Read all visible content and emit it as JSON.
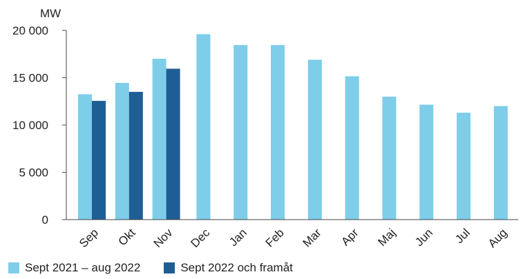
{
  "chart_data": {
    "type": "bar",
    "unit_label": "MW",
    "categories": [
      "Sep",
      "Okt",
      "Nov",
      "Dec",
      "Jan",
      "Feb",
      "Mar",
      "Apr",
      "Maj",
      "Jun",
      "Jul",
      "Aug"
    ],
    "series": [
      {
        "name": "Sept 2021 – aug 2022",
        "color": "#7ecde9",
        "values": [
          13250,
          14450,
          17000,
          19600,
          18450,
          18450,
          16900,
          15150,
          13000,
          12150,
          11300,
          12000
        ]
      },
      {
        "name": "Sept 2022 och framåt",
        "color": "#1f5d95",
        "values": [
          12550,
          13500,
          15950,
          null,
          null,
          null,
          null,
          null,
          null,
          null,
          null,
          null
        ]
      }
    ],
    "y_ticks": [
      0,
      5000,
      10000,
      15000,
      20000
    ],
    "y_tick_labels": [
      "0",
      "5 000",
      "10 000",
      "15 000",
      "20 000"
    ],
    "ylim": [
      0,
      20000
    ],
    "grid": false,
    "legend_position": "bottom-left"
  }
}
